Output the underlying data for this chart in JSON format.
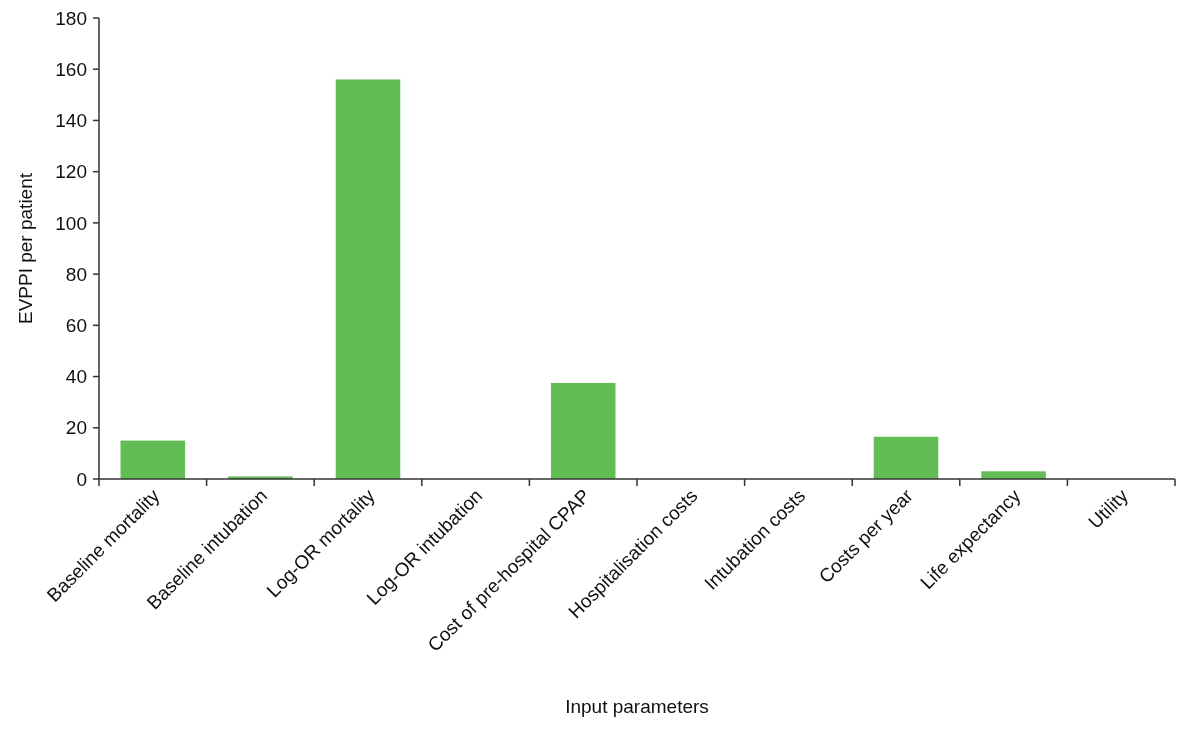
{
  "chart_data": {
    "type": "bar",
    "xlabel": "Input parameters",
    "ylabel": "EVPPI per patient",
    "categories": [
      "Baseline mortality",
      "Baseline intubation",
      "Log-OR mortality",
      "Log-OR intubation",
      "Cost of pre-hospital CPAP",
      "Hospitalisation costs",
      "Intubation costs",
      "Costs per year",
      "Life expectancy",
      "Utility"
    ],
    "values": [
      15,
      1,
      156,
      0,
      37.5,
      0,
      0,
      16.5,
      3,
      0
    ],
    "color": "#62bd55",
    "ylim": [
      0,
      180
    ],
    "yticks": [
      0,
      20,
      40,
      60,
      80,
      100,
      120,
      140,
      160,
      180
    ],
    "grid": false
  }
}
